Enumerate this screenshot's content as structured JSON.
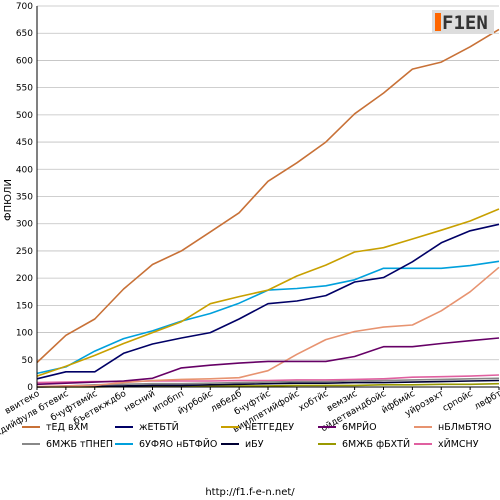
{
  "logo": {
    "text": "F1EN",
    "accent": "#ff6600"
  },
  "footer": {
    "url": "http://f1.f-e-n.net/"
  },
  "chart_data": {
    "type": "line",
    "ylabel": "ФПЮЛИ",
    "xlabel": "",
    "ylim": [
      0,
      700
    ],
    "yticks": [
      0,
      50,
      100,
      150,
      200,
      250,
      300,
      350,
      400,
      450,
      500,
      550,
      600,
      650,
      700
    ],
    "grid": true,
    "legend_position": "bottom",
    "categories": [
      "ввитеко",
      "ыхдийфулв бтевис",
      "бчуфтвмйс",
      "бъетвкждбо",
      "нвсний",
      "ипобпп",
      "йурбойс",
      "лвбедб",
      "бчуфтйс",
      "виилпвтийфойс",
      "хобтйс",
      "вемзис",
      "ойдетвандбойс",
      "йфбмйс",
      "уйрозвхт",
      "српойс",
      "лвфбт"
    ],
    "x_tick_labels": [
      "ввитеко",
      "ыхдийфулв бтевис",
      "бчуфтвмйс",
      "бъетвкждбо",
      "нвсний",
      "ипобпп",
      "йурбойс",
      "лвбедб",
      "бчуфтйс",
      "виилпвтийфойс",
      "хобтйс",
      "вемзис",
      "ойдетвандбойс",
      "йфбмйс",
      "уйрозвхт",
      "српойс",
      "лвфбт"
    ],
    "series": [
      {
        "name": "тЕД вХМ",
        "color": "#c87137",
        "values": [
          45,
          95,
          125,
          180,
          225,
          250,
          285,
          320,
          378,
          412,
          450,
          502,
          540,
          584,
          597,
          625,
          657
        ]
      },
      {
        "name": "жЕТБТЙ",
        "color": "#000066",
        "values": [
          15,
          28,
          28,
          62,
          79,
          90,
          100,
          125,
          153,
          158,
          168,
          193,
          201,
          230,
          265,
          287,
          299
        ]
      },
      {
        "name": "нЕТГЕДЕУ",
        "color": "#c8a000",
        "values": [
          20,
          38,
          58,
          80,
          100,
          120,
          153,
          166,
          178,
          204,
          224,
          248,
          256,
          272,
          288,
          305,
          327
        ]
      },
      {
        "name": "6МРЙО",
        "color": "#660066",
        "values": [
          5,
          7,
          9,
          11,
          16,
          35,
          40,
          44,
          47,
          47,
          47,
          56,
          74,
          74,
          80,
          85,
          90
        ]
      },
      {
        "name": "нБЛмБТЯО",
        "color": "#e79370",
        "values": [
          1,
          2,
          3,
          8,
          12,
          14,
          15,
          17,
          30,
          60,
          87,
          102,
          110,
          114,
          140,
          175,
          220
        ]
      },
      {
        "name": "6МЖБ тПНЕП",
        "color": "#888888",
        "values": [
          0,
          2,
          4,
          5,
          6,
          6,
          7,
          8,
          9,
          10,
          10,
          11,
          12,
          13,
          14,
          15,
          16
        ]
      },
      {
        "name": "6УФЯО нБТФЙО",
        "color": "#00a0dc",
        "values": [
          25,
          37,
          66,
          89,
          103,
          121,
          135,
          154,
          178,
          181,
          186,
          197,
          218,
          218,
          218,
          223,
          231
        ]
      },
      {
        "name": "иБУ",
        "color": "#000033",
        "values": [
          0,
          1,
          2,
          2,
          3,
          3,
          4,
          5,
          6,
          7,
          7,
          8,
          8,
          9,
          10,
          11,
          12
        ]
      },
      {
        "name": "6МЖБ фБХТЙ",
        "color": "#999900",
        "values": [
          0,
          0,
          0,
          1,
          1,
          1,
          2,
          2,
          2,
          3,
          3,
          3,
          4,
          4,
          5,
          5,
          6
        ]
      },
      {
        "name": "хЙМСНУ",
        "color": "#e060a0",
        "values": [
          8,
          9,
          10,
          10,
          11,
          11,
          11,
          12,
          12,
          13,
          13,
          14,
          15,
          18,
          19,
          20,
          22
        ]
      }
    ]
  }
}
